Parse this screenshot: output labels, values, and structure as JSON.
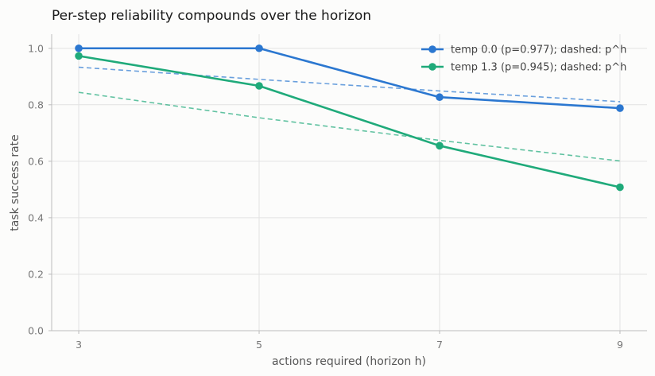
{
  "chart_data": {
    "type": "line",
    "title": "Per-step reliability compounds over the horizon",
    "xlabel": "actions required (horizon h)",
    "ylabel": "task success rate",
    "x": [
      3,
      5,
      7,
      9
    ],
    "x_ticks": [
      "3",
      "5",
      "7",
      "9"
    ],
    "xlim": [
      2.7,
      9.3
    ],
    "ylim": [
      0,
      1.05
    ],
    "y_ticks": [
      "0.0",
      "0.2",
      "0.4",
      "0.6",
      "0.8",
      "1.0"
    ],
    "grid": true,
    "legend_position": "top-right",
    "series": [
      {
        "name": "temp 0.0 (p=0.977); dashed: p^h",
        "values": [
          1.0,
          1.0,
          0.827,
          0.788
        ],
        "dashed_values": [
          0.933,
          0.89,
          0.849,
          0.811
        ],
        "color": "#2b77d0"
      },
      {
        "name": "temp 1.3 (p=0.945); dashed: p^h",
        "values": [
          0.973,
          0.867,
          0.655,
          0.508
        ],
        "dashed_values": [
          0.844,
          0.754,
          0.674,
          0.601
        ],
        "color": "#1faa7a"
      }
    ]
  }
}
